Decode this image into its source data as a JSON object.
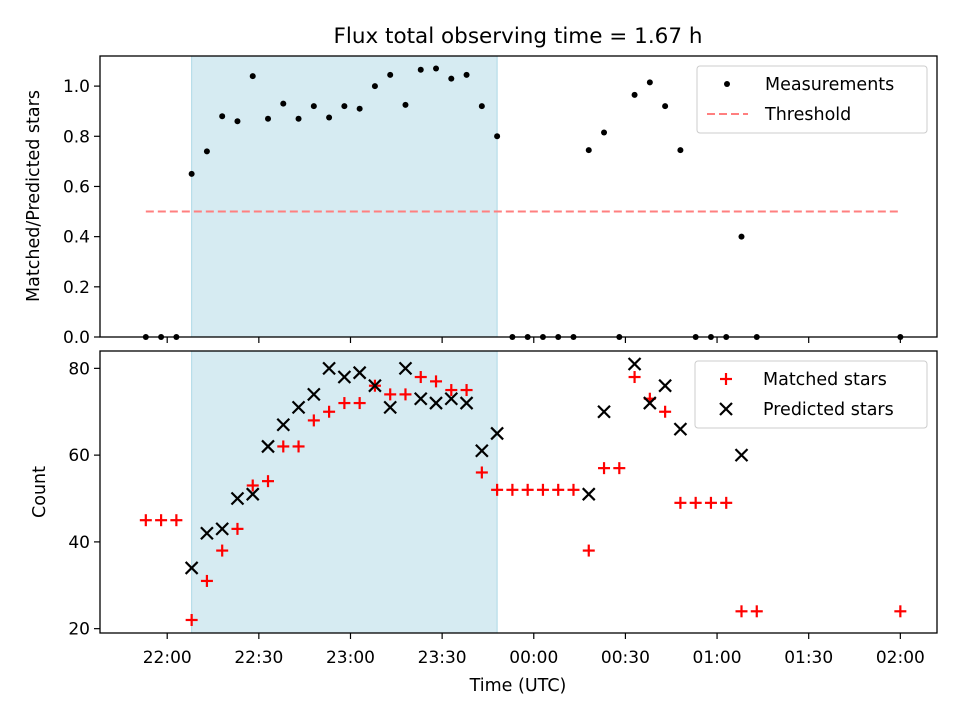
{
  "chart_data": [
    {
      "type": "scatter",
      "title": "Flux total observing time = 1.67 h",
      "xlabel": "",
      "ylabel": "Matched/Predicted stars",
      "xlim": [
        "21:38",
        "02:12"
      ],
      "ylim": [
        0.0,
        1.12
      ],
      "yticks": [
        0.0,
        0.2,
        0.4,
        0.6,
        0.8,
        1.0
      ],
      "ytick_labels": [
        "0.0",
        "0.2",
        "0.4",
        "0.6",
        "0.8",
        "1.0"
      ],
      "shaded_span": [
        "22:08",
        "23:48"
      ],
      "legend": {
        "position": "top-right",
        "entries": [
          "Measurements",
          "Threshold"
        ]
      },
      "series": [
        {
          "name": "Measurements",
          "marker": "dot",
          "color": "#000000",
          "points": [
            [
              "21:53",
              0.0
            ],
            [
              "21:58",
              0.0
            ],
            [
              "22:03",
              0.0
            ],
            [
              "22:08",
              0.65
            ],
            [
              "22:13",
              0.74
            ],
            [
              "22:18",
              0.88
            ],
            [
              "22:23",
              0.86
            ],
            [
              "22:28",
              1.04
            ],
            [
              "22:33",
              0.87
            ],
            [
              "22:38",
              0.93
            ],
            [
              "22:43",
              0.87
            ],
            [
              "22:48",
              0.92
            ],
            [
              "22:53",
              0.875
            ],
            [
              "22:58",
              0.92
            ],
            [
              "23:03",
              0.91
            ],
            [
              "23:08",
              1.0
            ],
            [
              "23:13",
              1.045
            ],
            [
              "23:18",
              0.925
            ],
            [
              "23:23",
              1.065
            ],
            [
              "23:28",
              1.07
            ],
            [
              "23:33",
              1.03
            ],
            [
              "23:38",
              1.045
            ],
            [
              "23:43",
              0.92
            ],
            [
              "23:48",
              0.8
            ],
            [
              "23:53",
              0.0
            ],
            [
              "23:58",
              0.0
            ],
            [
              "00:03",
              0.0
            ],
            [
              "00:08",
              0.0
            ],
            [
              "00:13",
              0.0
            ],
            [
              "00:18",
              0.745
            ],
            [
              "00:23",
              0.815
            ],
            [
              "00:28",
              0.0
            ],
            [
              "00:33",
              0.965
            ],
            [
              "00:38",
              1.015
            ],
            [
              "00:43",
              0.92
            ],
            [
              "00:48",
              0.745
            ],
            [
              "00:53",
              0.0
            ],
            [
              "00:58",
              0.0
            ],
            [
              "01:03",
              0.0
            ],
            [
              "01:08",
              0.4
            ],
            [
              "01:13",
              0.0
            ],
            [
              "02:00",
              0.0
            ]
          ]
        },
        {
          "name": "Threshold",
          "marker": "dashed-line",
          "color": "#ff7f7f",
          "points": [
            [
              "21:53",
              0.5
            ],
            [
              "02:00",
              0.5
            ]
          ]
        }
      ]
    },
    {
      "type": "scatter",
      "title": "",
      "xlabel": "Time (UTC)",
      "ylabel": "Count",
      "xlim": [
        "21:38",
        "02:12"
      ],
      "ylim": [
        19,
        84
      ],
      "yticks": [
        20,
        40,
        60,
        80
      ],
      "ytick_labels": [
        "20",
        "40",
        "60",
        "80"
      ],
      "xticks": [
        "22:00",
        "22:30",
        "23:00",
        "23:30",
        "00:00",
        "00:30",
        "01:00",
        "01:30",
        "02:00"
      ],
      "shaded_span": [
        "22:08",
        "23:48"
      ],
      "legend": {
        "position": "top-right",
        "entries": [
          "Matched stars",
          "Predicted stars"
        ]
      },
      "series": [
        {
          "name": "Matched stars",
          "marker": "plus",
          "color": "#ff0000",
          "points": [
            [
              "21:53",
              45
            ],
            [
              "21:58",
              45
            ],
            [
              "22:03",
              45
            ],
            [
              "22:08",
              22
            ],
            [
              "22:13",
              31
            ],
            [
              "22:18",
              38
            ],
            [
              "22:23",
              43
            ],
            [
              "22:28",
              53
            ],
            [
              "22:33",
              54
            ],
            [
              "22:38",
              62
            ],
            [
              "22:43",
              62
            ],
            [
              "22:48",
              68
            ],
            [
              "22:53",
              70
            ],
            [
              "22:58",
              72
            ],
            [
              "23:03",
              72
            ],
            [
              "23:08",
              76
            ],
            [
              "23:13",
              74
            ],
            [
              "23:18",
              74
            ],
            [
              "23:23",
              78
            ],
            [
              "23:28",
              77
            ],
            [
              "23:33",
              75
            ],
            [
              "23:38",
              75
            ],
            [
              "23:43",
              56
            ],
            [
              "23:48",
              52
            ],
            [
              "23:53",
              52
            ],
            [
              "23:58",
              52
            ],
            [
              "00:03",
              52
            ],
            [
              "00:08",
              52
            ],
            [
              "00:13",
              52
            ],
            [
              "00:18",
              38
            ],
            [
              "00:23",
              57
            ],
            [
              "00:28",
              57
            ],
            [
              "00:33",
              78
            ],
            [
              "00:38",
              73
            ],
            [
              "00:43",
              70
            ],
            [
              "00:48",
              49
            ],
            [
              "00:53",
              49
            ],
            [
              "00:58",
              49
            ],
            [
              "01:03",
              49
            ],
            [
              "01:08",
              24
            ],
            [
              "01:13",
              24
            ],
            [
              "02:00",
              24
            ]
          ]
        },
        {
          "name": "Predicted stars",
          "marker": "x",
          "color": "#000000",
          "points": [
            [
              "22:08",
              34
            ],
            [
              "22:13",
              42
            ],
            [
              "22:18",
              43
            ],
            [
              "22:23",
              50
            ],
            [
              "22:28",
              51
            ],
            [
              "22:33",
              62
            ],
            [
              "22:38",
              67
            ],
            [
              "22:43",
              71
            ],
            [
              "22:48",
              74
            ],
            [
              "22:53",
              80
            ],
            [
              "22:58",
              78
            ],
            [
              "23:03",
              79
            ],
            [
              "23:08",
              76
            ],
            [
              "23:13",
              71
            ],
            [
              "23:18",
              80
            ],
            [
              "23:23",
              73
            ],
            [
              "23:28",
              72
            ],
            [
              "23:33",
              73
            ],
            [
              "23:38",
              72
            ],
            [
              "23:43",
              61
            ],
            [
              "23:48",
              65
            ],
            [
              "00:18",
              51
            ],
            [
              "00:23",
              70
            ],
            [
              "00:33",
              81
            ],
            [
              "00:38",
              72
            ],
            [
              "00:43",
              76
            ],
            [
              "00:48",
              66
            ],
            [
              "01:08",
              60
            ]
          ]
        }
      ]
    }
  ]
}
